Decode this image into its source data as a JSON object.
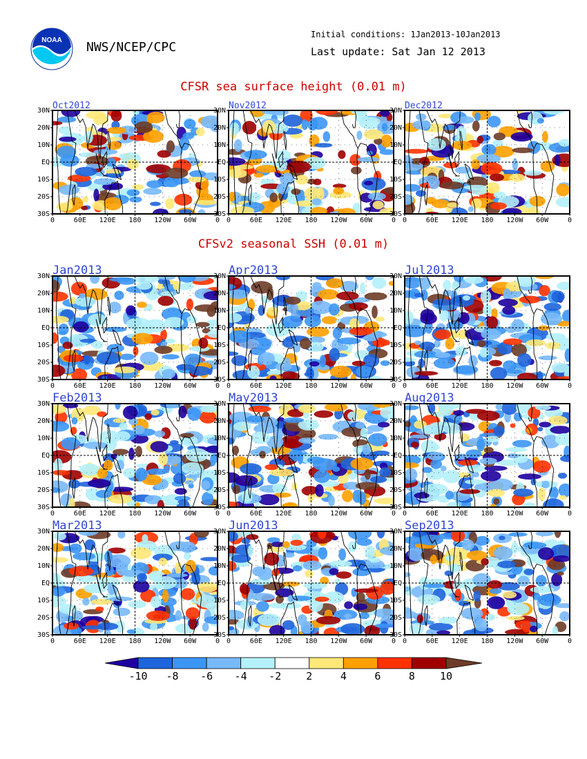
{
  "header": {
    "logo_text": "NOAA",
    "organization": "NWS/NCEP/CPC",
    "initial_conditions": "Initial conditions: 1Jan2013-10Jan2013",
    "last_update": "Last update: Sat Jan 12 2013"
  },
  "sections": {
    "observed_title": "CFSR sea surface height (0.01 m)",
    "forecast_title": "CFSv2 seasonal SSH (0.01 m)"
  },
  "axes": {
    "lat_ticks": [
      "30N",
      "20N",
      "10N",
      "EQ",
      "10S",
      "20S",
      "30S"
    ],
    "lat_values": [
      30,
      20,
      10,
      0,
      -10,
      -20,
      -30
    ],
    "lon_ticks": [
      "0",
      "60E",
      "120E",
      "180",
      "120W",
      "60W",
      "0"
    ],
    "lon_values": [
      0,
      60,
      120,
      180,
      240,
      300,
      360
    ]
  },
  "panels": {
    "observed": [
      {
        "label": "Oct2012"
      },
      {
        "label": "Nov2012"
      },
      {
        "label": "Dec2012"
      }
    ],
    "forecast": [
      {
        "label": "Jan2013"
      },
      {
        "label": "Apr2013"
      },
      {
        "label": "Jul2013"
      },
      {
        "label": "Feb2013"
      },
      {
        "label": "May2013"
      },
      {
        "label": "Aug2013"
      },
      {
        "label": "Mar2013"
      },
      {
        "label": "Jun2013"
      },
      {
        "label": "Sep2013"
      }
    ]
  },
  "colorbar": {
    "labels": [
      "-10",
      "-8",
      "-6",
      "-4",
      "-2",
      "2",
      "4",
      "6",
      "8",
      "10"
    ],
    "colors": [
      "#1e00a0",
      "#1e64dc",
      "#3c96f5",
      "#78b9fa",
      "#b4f0fa",
      "#ffffff",
      "#ffe878",
      "#ffa000",
      "#ff3200",
      "#a00000",
      "#6e3c28"
    ]
  }
}
